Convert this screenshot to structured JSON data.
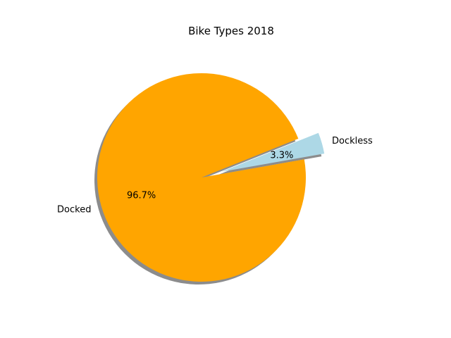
{
  "chart_data": {
    "type": "pie",
    "title": "Bike Types 2018",
    "slices": [
      {
        "label": "Dockless",
        "value": 3.3,
        "pct_label": "3.3%",
        "color": "#add8e6",
        "exploded": true
      },
      {
        "label": "Docked",
        "value": 96.7,
        "pct_label": "96.7%",
        "color": "#ffa500",
        "exploded": false
      }
    ],
    "shadow": true,
    "legend": false
  }
}
